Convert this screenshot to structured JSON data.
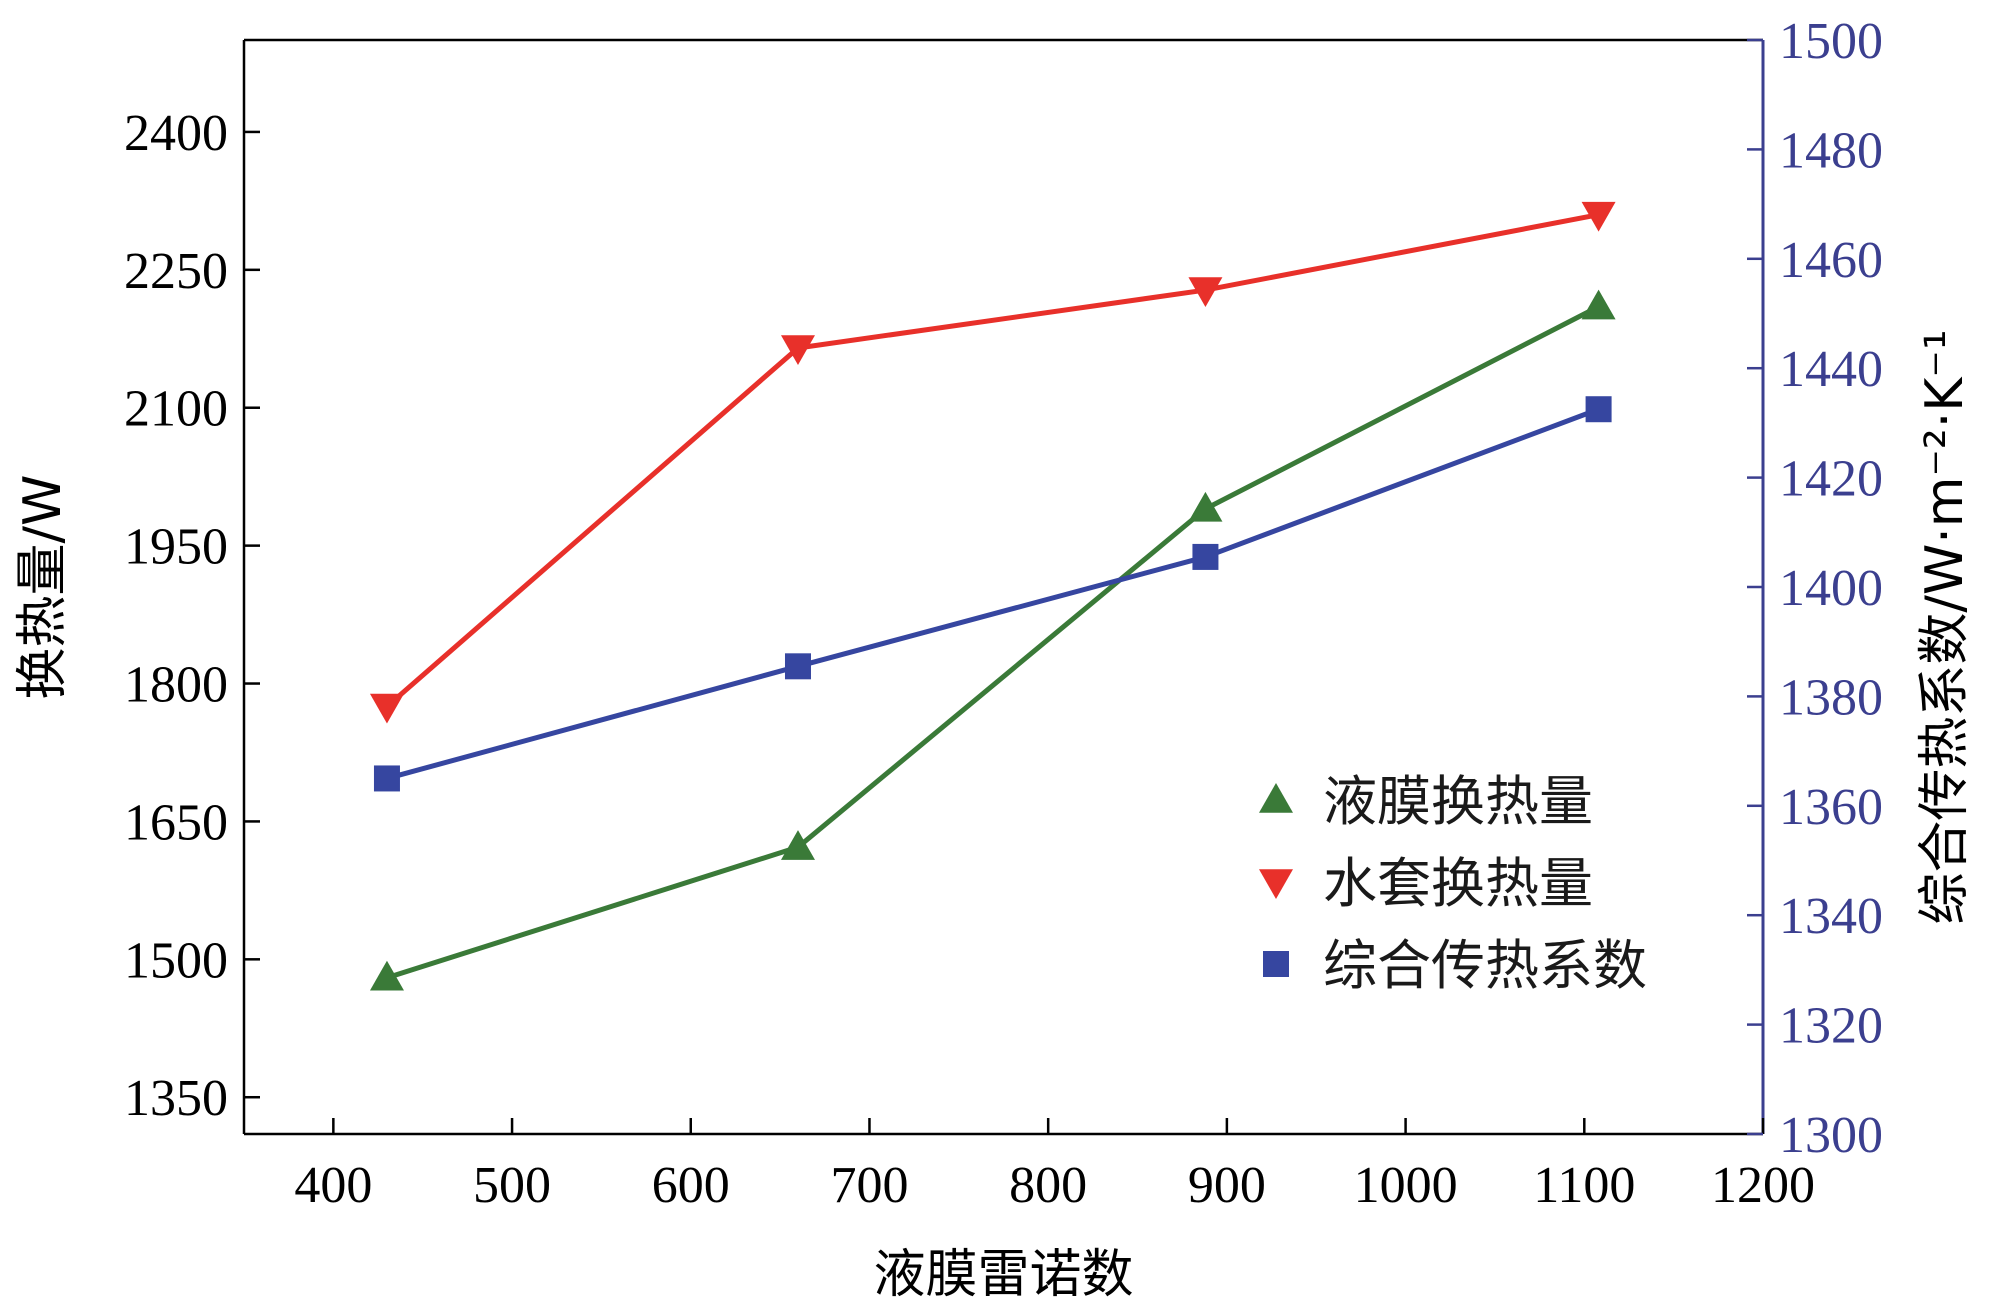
{
  "chart_data": {
    "type": "line",
    "title": "",
    "xlabel": "液膜雷诺数",
    "ylabel_left": "换热量/W",
    "ylabel_right": "综合传热系数/W·m⁻²·K⁻¹",
    "xlim": [
      350,
      1200
    ],
    "ylim_left": [
      1310,
      2500
    ],
    "ylim_right": [
      1300,
      1500
    ],
    "x_ticks": [
      400,
      500,
      600,
      700,
      800,
      900,
      1000,
      1100,
      1200
    ],
    "y_left_ticks": [
      1350,
      1500,
      1650,
      1800,
      1950,
      2100,
      2250,
      2400
    ],
    "y_right_ticks": [
      1300,
      1320,
      1340,
      1360,
      1380,
      1400,
      1420,
      1440,
      1460,
      1480,
      1500
    ],
    "grid": false,
    "legend_position": "bottom-right",
    "colors": {
      "right_axis": "#3b3f8f",
      "left_axis": "#000000"
    },
    "series": [
      {
        "name": "液膜换热量",
        "axis": "left",
        "color": "#3a7a38",
        "marker": "triangle-up",
        "x": [
          430,
          660,
          888,
          1108
        ],
        "y": [
          1480,
          1622,
          1990,
          2210
        ]
      },
      {
        "name": "水套换热量",
        "axis": "left",
        "color": "#e8302a",
        "marker": "triangle-down",
        "x": [
          430,
          660,
          888,
          1108
        ],
        "y": [
          1775,
          2165,
          2228,
          2310
        ]
      },
      {
        "name": "综合传热系数",
        "axis": "right",
        "color": "#3646a0",
        "marker": "square",
        "x": [
          430,
          660,
          888,
          1108
        ],
        "y": [
          1365,
          1385.5,
          1405.5,
          1432.5
        ]
      }
    ]
  }
}
